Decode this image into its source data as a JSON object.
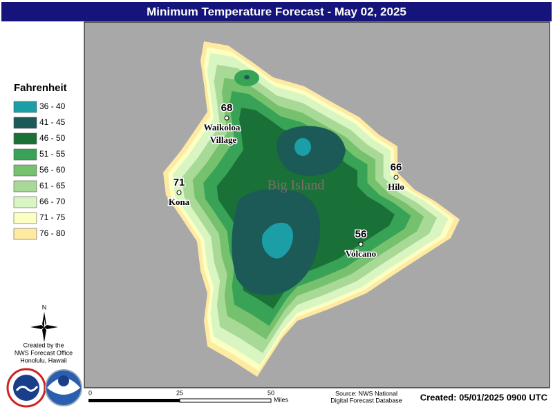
{
  "header": {
    "title": "Minimum Temperature Forecast - May 02, 2025"
  },
  "legend": {
    "title": "Fahrenheit",
    "items": [
      {
        "label": "36 - 40",
        "color": "#1c9ea6"
      },
      {
        "label": "41 - 45",
        "color": "#1b5a56"
      },
      {
        "label": "46 - 50",
        "color": "#1a7137"
      },
      {
        "label": "51 - 55",
        "color": "#38a256"
      },
      {
        "label": "56 - 60",
        "color": "#76c16e"
      },
      {
        "label": "61 - 65",
        "color": "#a9d996"
      },
      {
        "label": "66 - 70",
        "color": "#d9f5c2"
      },
      {
        "label": "71 - 75",
        "color": "#fbffc2"
      },
      {
        "label": "76 - 80",
        "color": "#ffeaa2"
      }
    ]
  },
  "map": {
    "region_label": "Big Island",
    "cities": [
      {
        "temp": 68,
        "name": [
          "Waikoloa",
          "Village"
        ]
      },
      {
        "temp": 71,
        "name": [
          "Kona"
        ]
      },
      {
        "temp": 66,
        "name": [
          "Hilo"
        ]
      },
      {
        "temp": 56,
        "name": [
          "Volcano"
        ]
      }
    ]
  },
  "compass": "N",
  "credit": [
    "Created by the",
    "NWS Forecast Office",
    "Honolulu, Hawaii"
  ],
  "scale_bar": {
    "ticks": [
      "0",
      "25",
      "50"
    ],
    "unit": "Miles"
  },
  "source": [
    "Source: NWS National",
    "Digital Forecast Database"
  ],
  "created": "Created: 05/01/2025 0900 UTC"
}
